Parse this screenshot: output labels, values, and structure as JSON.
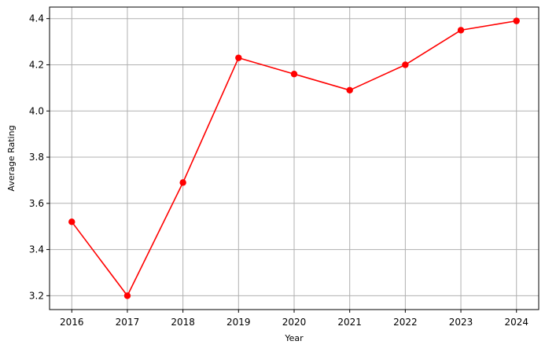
{
  "chart_data": {
    "type": "line",
    "title": "",
    "xlabel": "Year",
    "ylabel": "Average Rating",
    "x": [
      2016,
      2017,
      2018,
      2019,
      2020,
      2021,
      2022,
      2023,
      2024
    ],
    "series": [
      {
        "values": [
          3.52,
          3.2,
          3.69,
          4.23,
          4.16,
          4.09,
          4.2,
          4.35,
          4.39
        ],
        "color": "#ff0000",
        "marker": "circle"
      }
    ],
    "xlim": [
      2015.6,
      2024.4
    ],
    "ylim": [
      3.14,
      4.45
    ],
    "yticks": [
      3.2,
      3.4,
      3.6,
      3.8,
      4.0,
      4.2,
      4.4
    ],
    "ytick_labels": [
      "3.2",
      "3.4",
      "3.6",
      "3.8",
      "4.0",
      "4.2",
      "4.4"
    ],
    "xtick_labels": [
      "2016",
      "2017",
      "2018",
      "2019",
      "2020",
      "2021",
      "2022",
      "2023",
      "2024"
    ],
    "grid": true,
    "grid_color": "#b0b0b0",
    "legend": "none"
  }
}
